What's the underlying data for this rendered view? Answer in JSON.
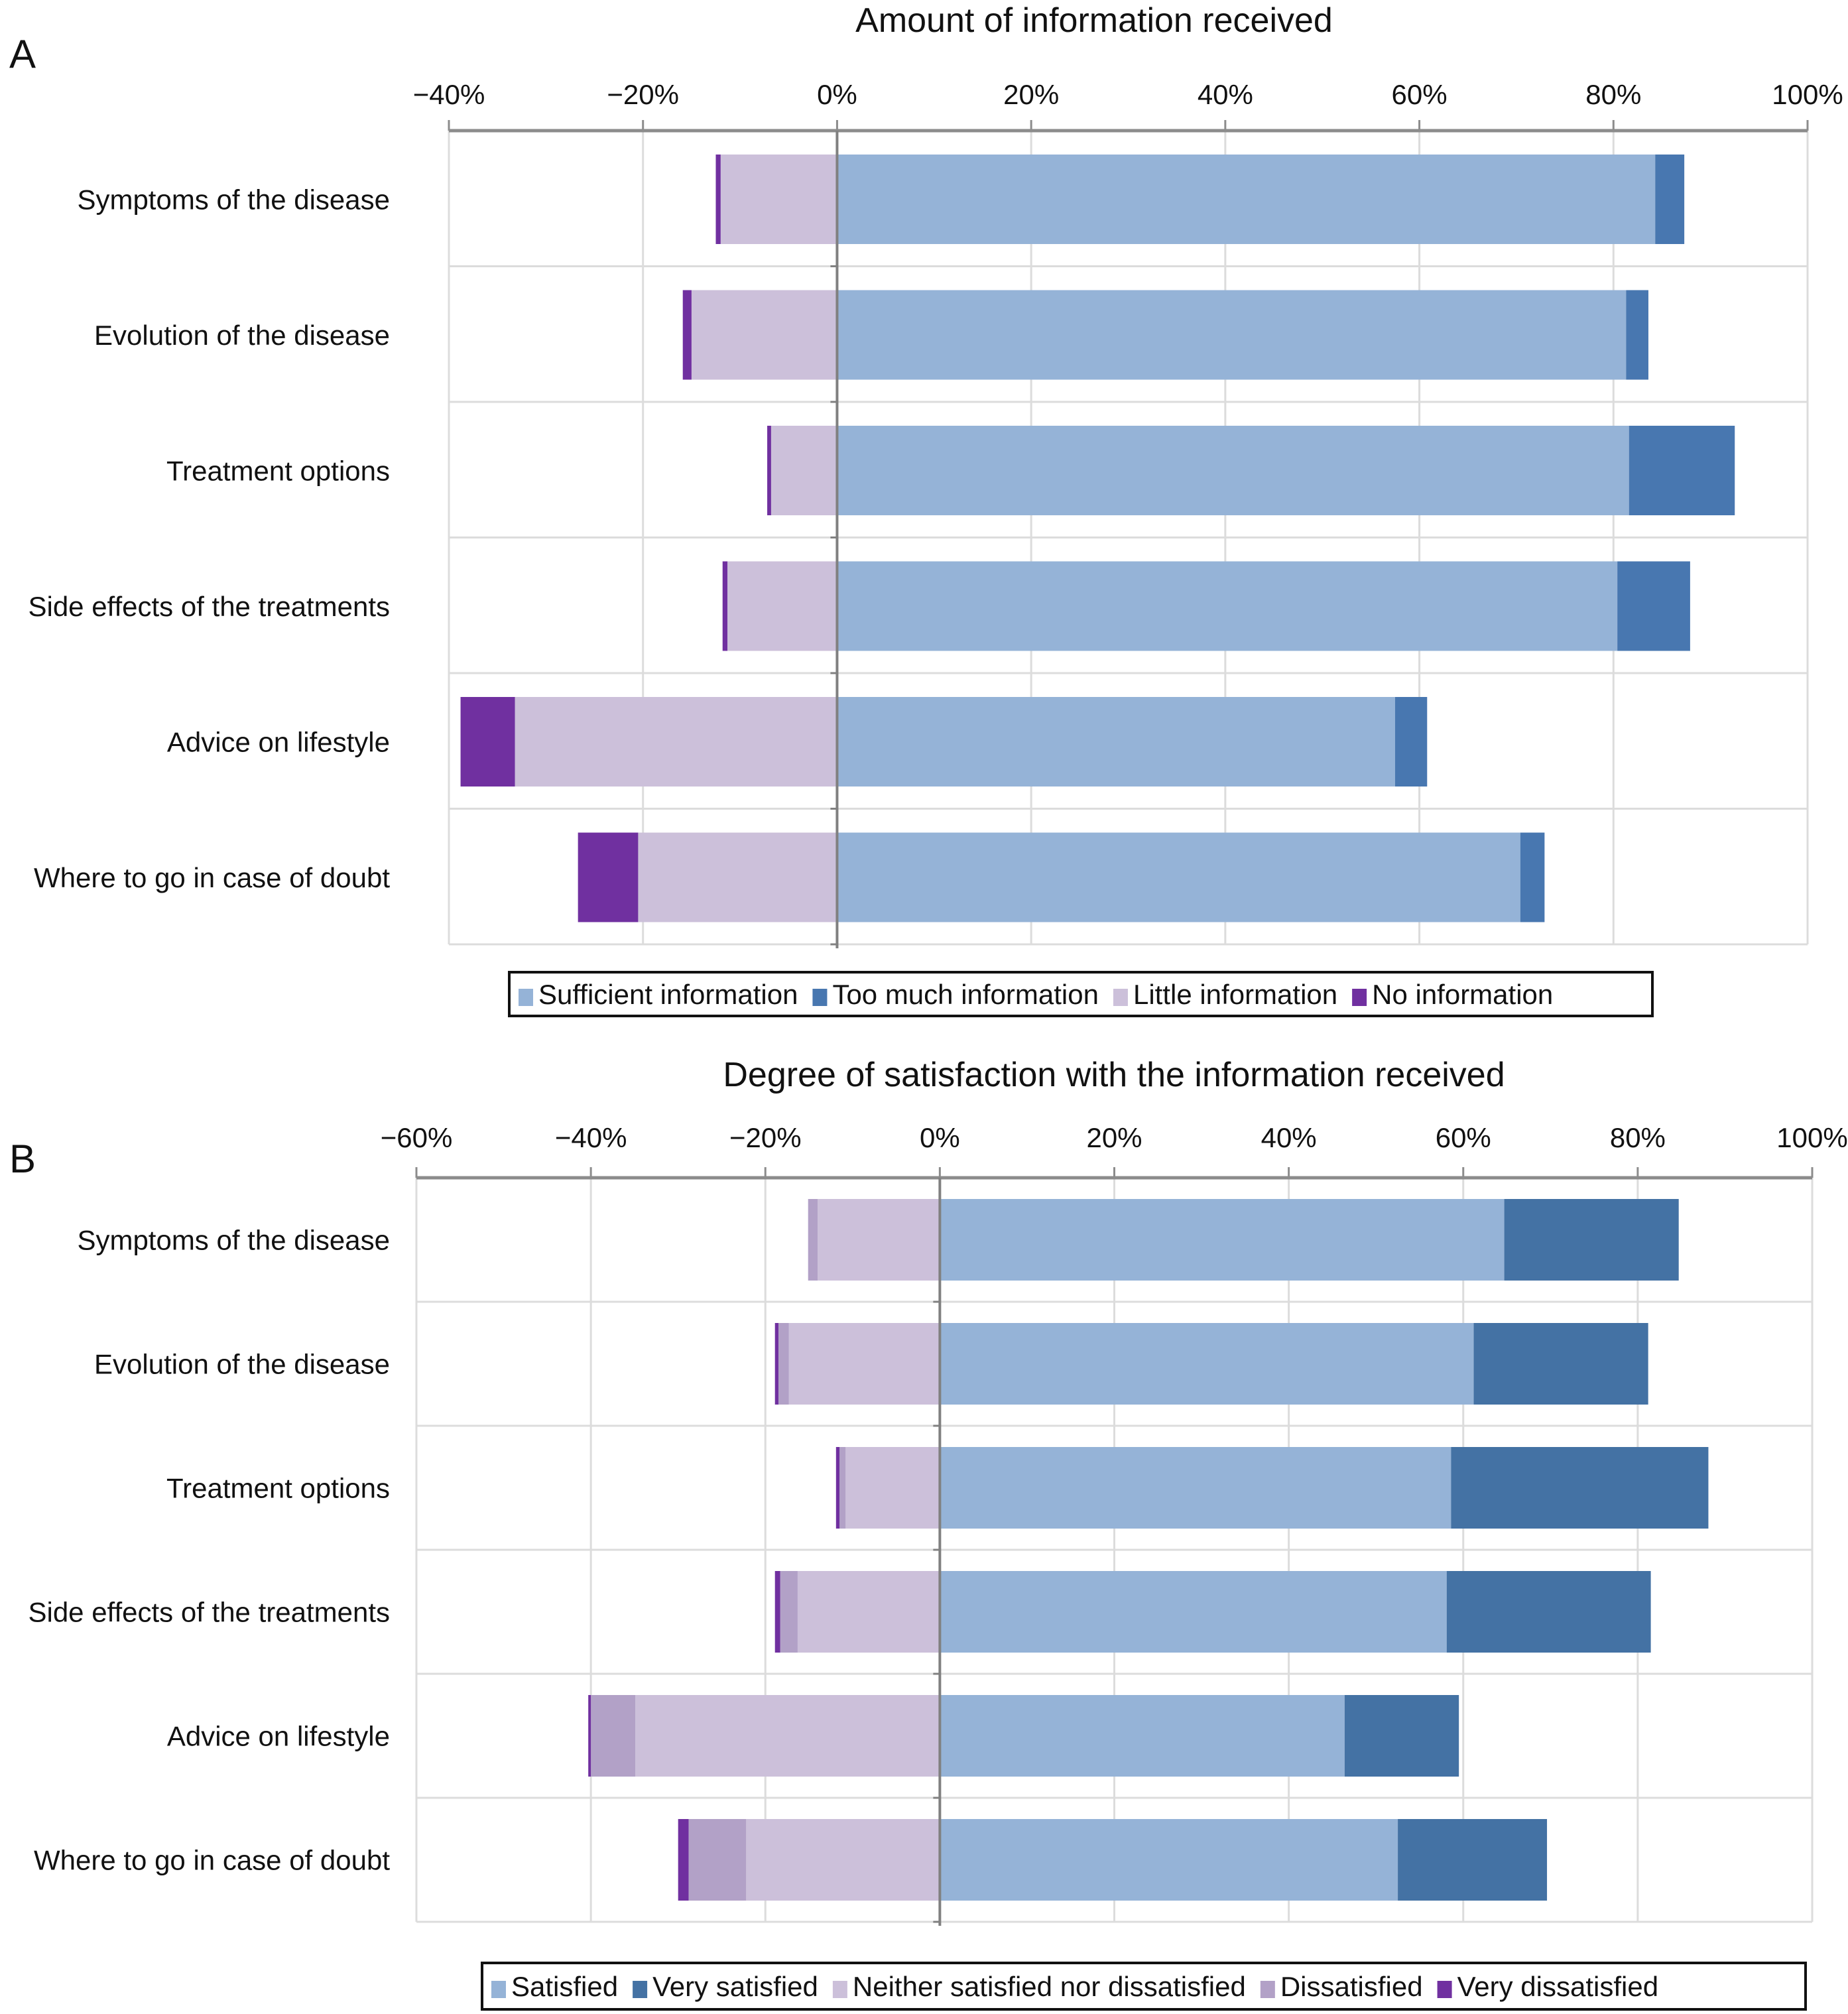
{
  "chart_data": [
    {
      "panel": "A",
      "type": "bar",
      "orientation": "horizontal-diverging-stacked",
      "title": "Amount of information received",
      "xlabel": "",
      "ylabel": "",
      "xlim": [
        -40,
        100
      ],
      "xticks": [
        -40,
        -20,
        0,
        20,
        40,
        60,
        80,
        100
      ],
      "xtick_labels": [
        "−40%",
        "−20%",
        "0%",
        "20%",
        "40%",
        "60%",
        "80%",
        "100%"
      ],
      "grid": true,
      "legend_position": "bottom",
      "categories": [
        "Symptoms of the disease",
        "Evolution of the disease",
        "Treatment options",
        "Side effects of the treatments",
        "Advice on lifestyle",
        "Where to go in case of doubt"
      ],
      "series": [
        {
          "name": "Sufficient information",
          "side": "positive",
          "color": "#95b3d7",
          "values": [
            84.3,
            81.3,
            81.6,
            80.4,
            57.5,
            70.4
          ]
        },
        {
          "name": "Too much information",
          "side": "positive",
          "color": "#4877b0",
          "values": [
            3.0,
            2.3,
            10.9,
            7.5,
            3.3,
            2.5
          ]
        },
        {
          "name": "Little information",
          "side": "negative",
          "color": "#ccc0da",
          "values": [
            12.0,
            15.0,
            6.8,
            11.3,
            33.2,
            20.5
          ]
        },
        {
          "name": "No information",
          "side": "negative",
          "color": "#7030a0",
          "values": [
            0.5,
            0.9,
            0.4,
            0.5,
            5.6,
            6.2
          ]
        }
      ]
    },
    {
      "panel": "B",
      "type": "bar",
      "orientation": "horizontal-diverging-stacked",
      "title": "Degree of satisfaction with the information received",
      "xlabel": "",
      "ylabel": "",
      "xlim": [
        -60,
        100
      ],
      "xticks": [
        -60,
        -40,
        -20,
        0,
        20,
        40,
        60,
        80,
        100
      ],
      "xtick_labels": [
        "−60%",
        "−40%",
        "−20%",
        "0%",
        "20%",
        "40%",
        "60%",
        "80%",
        "100%"
      ],
      "grid": true,
      "legend_position": "bottom",
      "categories": [
        "Symptoms of the disease",
        "Evolution of the disease",
        "Treatment options",
        "Side effects of the treatments",
        "Advice on lifestyle",
        "Where to go in case of doubt"
      ],
      "series": [
        {
          "name": "Satisfied",
          "side": "positive",
          "color": "#95b3d7",
          "values": [
            64.7,
            61.2,
            58.6,
            58.1,
            46.4,
            52.5
          ]
        },
        {
          "name": "Very satisfied",
          "side": "positive",
          "color": "#4472a4",
          "values": [
            20.0,
            20.0,
            29.5,
            23.4,
            13.1,
            17.1
          ]
        },
        {
          "name": "Neither satisfied nor dissatisfied",
          "side": "negative",
          "color": "#ccc0da",
          "values": [
            14.0,
            17.3,
            10.8,
            16.3,
            34.9,
            22.2
          ]
        },
        {
          "name": "Dissatisfied",
          "side": "negative",
          "color": "#b2a1c7",
          "values": [
            1.1,
            1.2,
            0.7,
            2.0,
            5.1,
            6.6
          ]
        },
        {
          "name": "Very dissatisfied",
          "side": "negative",
          "color": "#7030a0",
          "values": [
            0.0,
            0.4,
            0.4,
            0.6,
            0.3,
            1.2
          ]
        }
      ]
    }
  ]
}
